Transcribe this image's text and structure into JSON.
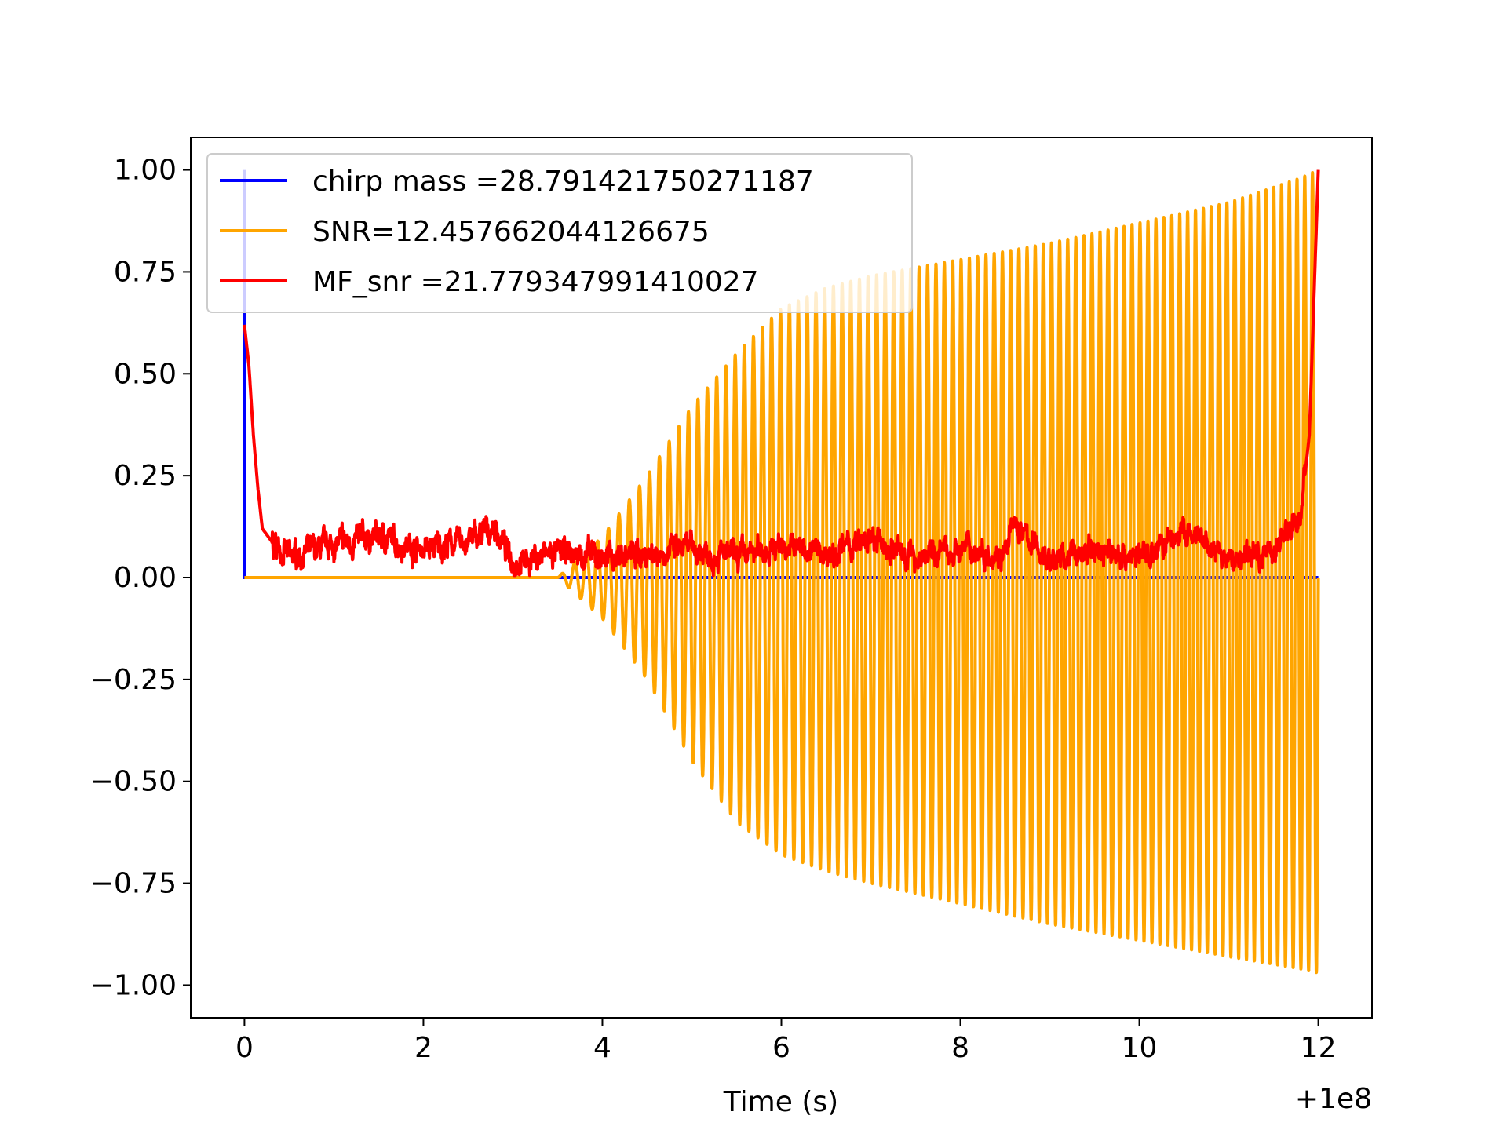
{
  "chart_data": {
    "type": "line",
    "title": "",
    "xlabel": "Time (s)",
    "ylabel": "",
    "x_offset_label": "+1e8",
    "xlim": [
      -0.6,
      12.6
    ],
    "ylim": [
      -1.08,
      1.08
    ],
    "x_ticks": [
      0,
      2,
      4,
      6,
      8,
      10,
      12
    ],
    "x_tick_labels": [
      "0",
      "2",
      "4",
      "6",
      "8",
      "10",
      "12"
    ],
    "y_ticks": [
      1.0,
      0.75,
      0.5,
      0.25,
      0.0,
      -0.25,
      -0.5,
      -0.75,
      -1.0
    ],
    "y_tick_labels": [
      "1.00",
      "0.75",
      "0.50",
      "0.25",
      "0.00",
      "−0.25",
      "−0.50",
      "−0.75",
      "−1.00"
    ],
    "grid": false,
    "legend_position": "top-left",
    "series": [
      {
        "name": "chirp mass =28.791421750271187",
        "color": "#0000ff",
        "description_points": {
          "x": [
            0.0,
            0.0,
            0.0,
            12.0
          ],
          "y": [
            0.0,
            1.0,
            0.0,
            0.0
          ]
        }
      },
      {
        "name": "SNR=12.457662044126675",
        "color": "#ffa500",
        "envelope": {
          "x": [
            0.0,
            3.5,
            4.0,
            4.5,
            5.0,
            5.5,
            6.0,
            6.5,
            7.0,
            8.0,
            9.0,
            10.0,
            11.0,
            11.8,
            12.0
          ],
          "upper": [
            0.0,
            0.0,
            0.1,
            0.25,
            0.42,
            0.55,
            0.66,
            0.71,
            0.74,
            0.78,
            0.82,
            0.87,
            0.92,
            0.98,
            1.0
          ],
          "lower": [
            0.0,
            0.0,
            -0.1,
            -0.25,
            -0.45,
            -0.6,
            -0.68,
            -0.72,
            -0.75,
            -0.8,
            -0.85,
            -0.89,
            -0.93,
            -0.96,
            -0.97
          ]
        }
      },
      {
        "name": "MF_snr =21.779347991410027",
        "color": "#ff0000",
        "description_points": {
          "x": [
            0.0,
            0.05,
            0.1,
            0.15,
            0.2,
            0.3,
            0.5,
            1.0,
            1.5,
            2.0,
            2.5,
            2.8,
            3.0,
            3.5,
            4.0,
            4.5,
            5.0,
            5.5,
            6.0,
            6.5,
            7.0,
            7.5,
            8.0,
            8.5,
            8.6,
            9.0,
            9.5,
            10.0,
            10.5,
            11.0,
            11.5,
            11.8,
            11.9,
            12.0
          ],
          "y": [
            0.62,
            0.52,
            0.35,
            0.22,
            0.12,
            0.09,
            0.05,
            0.08,
            0.1,
            0.07,
            0.09,
            0.12,
            0.04,
            0.06,
            0.05,
            0.06,
            0.07,
            0.05,
            0.08,
            0.06,
            0.09,
            0.05,
            0.07,
            0.06,
            0.13,
            0.04,
            0.07,
            0.05,
            0.11,
            0.04,
            0.07,
            0.15,
            0.35,
            1.0
          ]
        }
      }
    ]
  }
}
